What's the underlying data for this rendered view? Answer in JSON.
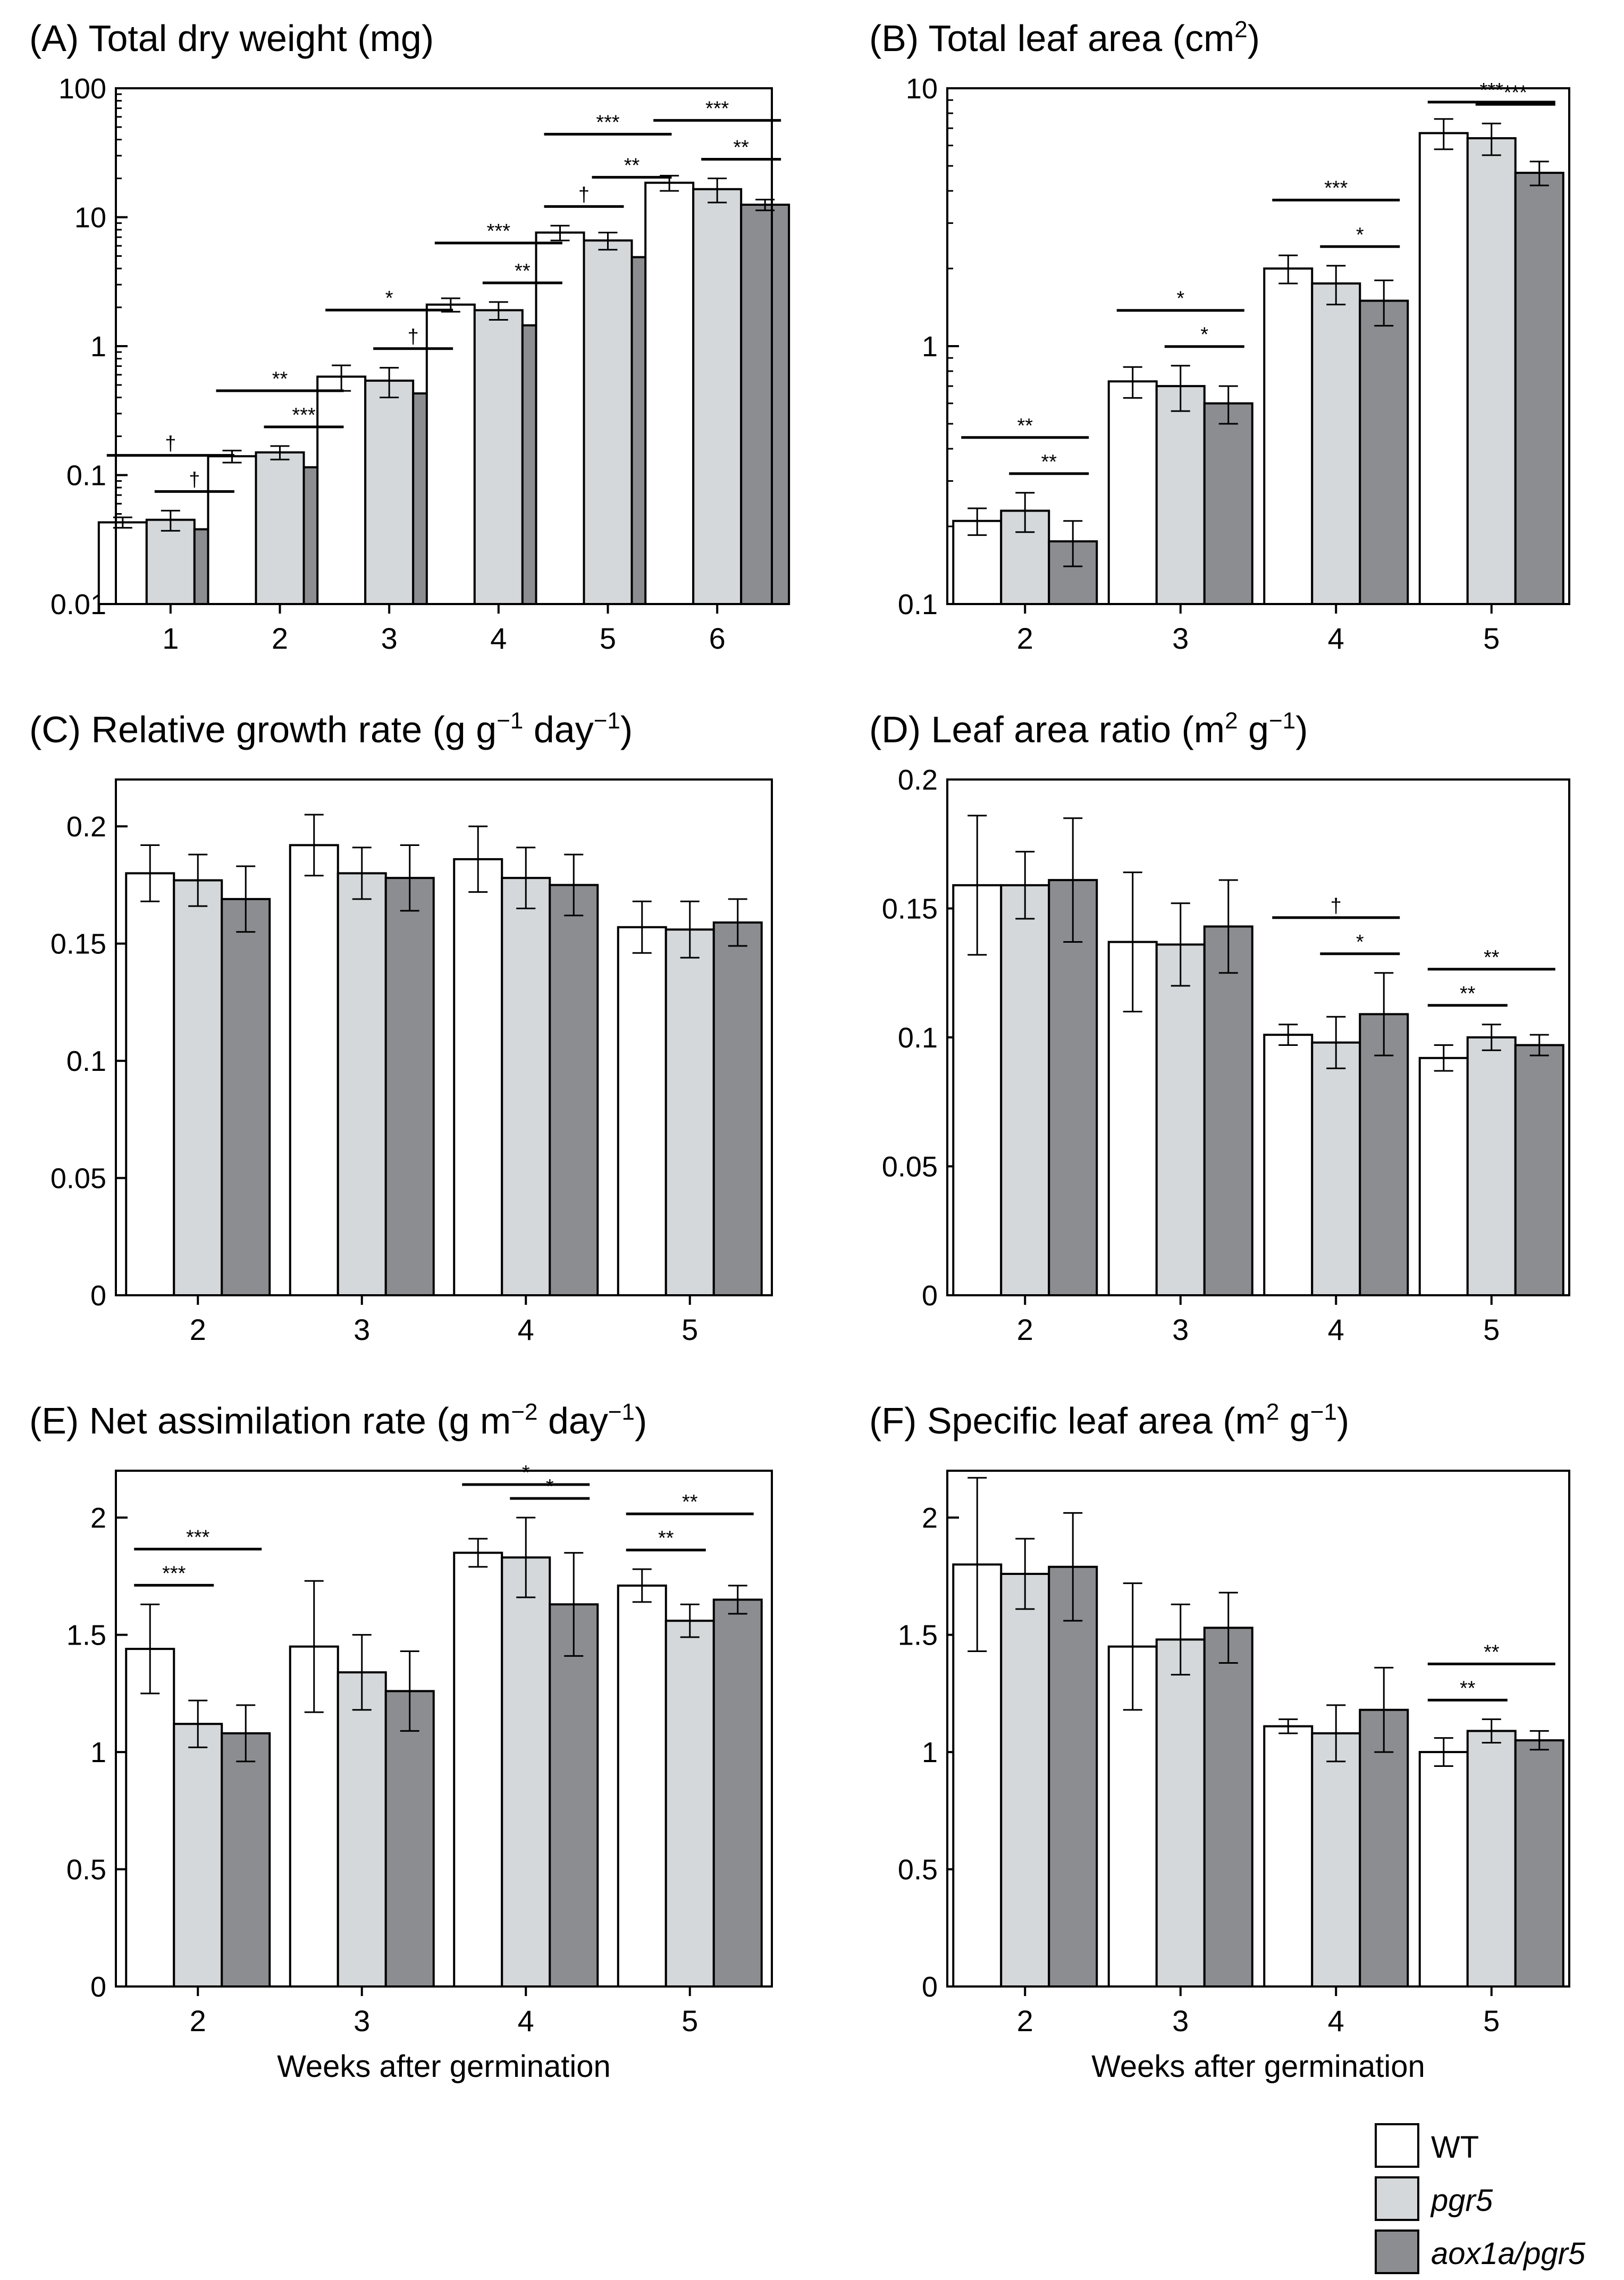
{
  "legend": [
    {
      "label": "WT",
      "color": "#ffffff",
      "italic": false
    },
    {
      "label": "pgr5",
      "color": "#d4d8da",
      "italic": true
    },
    {
      "label": "aox1a/pgr5",
      "color": "#8c8d91",
      "italic": true
    }
  ],
  "chart_data": [
    {
      "type": "bar",
      "id": "A",
      "title": {
        "lead": "(A) Total dry weight (mg)"
      },
      "scale": "log",
      "ylim": [
        0.01,
        100
      ],
      "yticks": [
        "0.01",
        "0.1",
        "1",
        "10",
        "100"
      ],
      "categories": [
        "1",
        "2",
        "3",
        "4",
        "5",
        "6"
      ],
      "xlabel": "",
      "series": [
        {
          "name": "WT",
          "values": [
            0.043,
            0.14,
            0.58,
            2.1,
            7.6,
            18.5
          ],
          "errors": [
            0.004,
            0.015,
            0.13,
            0.25,
            1.0,
            2.5
          ]
        },
        {
          "name": "pgr5",
          "values": [
            0.045,
            0.15,
            0.54,
            1.9,
            6.6,
            16.5
          ],
          "errors": [
            0.008,
            0.018,
            0.14,
            0.3,
            1.0,
            3.5
          ]
        },
        {
          "name": "aox1a/pgr5",
          "values": [
            0.038,
            0.115,
            0.43,
            1.45,
            4.9,
            12.5
          ],
          "errors": [
            0.006,
            0.025,
            0.09,
            0.25,
            0.6,
            1.2
          ]
        }
      ],
      "significance": [
        {
          "cat": 0,
          "from": 0,
          "to": 2,
          "label": "†"
        },
        {
          "cat": 0,
          "from": 1,
          "to": 2,
          "label": "†"
        },
        {
          "cat": 1,
          "from": 0,
          "to": 2,
          "label": "**"
        },
        {
          "cat": 1,
          "from": 1,
          "to": 2,
          "label": "***"
        },
        {
          "cat": 2,
          "from": 0,
          "to": 2,
          "label": "*"
        },
        {
          "cat": 2,
          "from": 1,
          "to": 2,
          "label": "†"
        },
        {
          "cat": 3,
          "from": 0,
          "to": 2,
          "label": "***"
        },
        {
          "cat": 3,
          "from": 1,
          "to": 2,
          "label": "**"
        },
        {
          "cat": 4,
          "from": 0,
          "to": 2,
          "label": "***"
        },
        {
          "cat": 4,
          "from": 0,
          "to": 1,
          "label": "†"
        },
        {
          "cat": 4,
          "from": 1,
          "to": 2,
          "label": "**"
        },
        {
          "cat": 5,
          "from": 0,
          "to": 2,
          "label": "***"
        },
        {
          "cat": 5,
          "from": 1,
          "to": 2,
          "label": "**"
        }
      ]
    },
    {
      "type": "bar",
      "id": "B",
      "title": {
        "lead": "(B) Total leaf area (cm",
        "sup1": "2",
        "mid": ")"
      },
      "scale": "log",
      "ylim": [
        0.1,
        10
      ],
      "yticks": [
        "0.1",
        "1",
        "10"
      ],
      "categories": [
        "2",
        "3",
        "4",
        "5"
      ],
      "xlabel": "",
      "series": [
        {
          "name": "WT",
          "values": [
            0.21,
            0.73,
            2.0,
            6.7
          ],
          "errors": [
            0.025,
            0.1,
            0.25,
            0.9
          ]
        },
        {
          "name": "pgr5",
          "values": [
            0.23,
            0.7,
            1.75,
            6.4
          ],
          "errors": [
            0.04,
            0.14,
            0.3,
            0.9
          ]
        },
        {
          "name": "aox1a/pgr5",
          "values": [
            0.175,
            0.6,
            1.5,
            4.7
          ],
          "errors": [
            0.035,
            0.1,
            0.3,
            0.5
          ]
        }
      ],
      "significance": [
        {
          "cat": 0,
          "from": 0,
          "to": 2,
          "label": "**"
        },
        {
          "cat": 0,
          "from": 1,
          "to": 2,
          "label": "**"
        },
        {
          "cat": 1,
          "from": 0,
          "to": 2,
          "label": "*"
        },
        {
          "cat": 1,
          "from": 1,
          "to": 2,
          "label": "*"
        },
        {
          "cat": 2,
          "from": 0,
          "to": 2,
          "label": "***"
        },
        {
          "cat": 2,
          "from": 1,
          "to": 2,
          "label": "*"
        },
        {
          "cat": 3,
          "from": 0,
          "to": 2,
          "label": "***"
        },
        {
          "cat": 3,
          "from": 1,
          "to": 2,
          "label": "***"
        }
      ]
    },
    {
      "type": "bar",
      "id": "C",
      "title": {
        "lead": "(C) Relative growth rate (g g",
        "sup1": "−1",
        "mid": " day",
        "sup2": "−1",
        "tail": ")"
      },
      "scale": "linear",
      "ylim": [
        0,
        0.22
      ],
      "yticks": [
        "0",
        "0.05",
        "0.1",
        "0.15",
        "0.2"
      ],
      "categories": [
        "2",
        "3",
        "4",
        "5"
      ],
      "xlabel": "",
      "series": [
        {
          "name": "WT",
          "values": [
            0.18,
            0.192,
            0.186,
            0.157
          ],
          "errors": [
            0.012,
            0.013,
            0.014,
            0.011
          ]
        },
        {
          "name": "pgr5",
          "values": [
            0.177,
            0.18,
            0.178,
            0.156
          ],
          "errors": [
            0.011,
            0.011,
            0.013,
            0.012
          ]
        },
        {
          "name": "aox1a/pgr5",
          "values": [
            0.169,
            0.178,
            0.175,
            0.159
          ],
          "errors": [
            0.014,
            0.014,
            0.013,
            0.01
          ]
        }
      ],
      "significance": []
    },
    {
      "type": "bar",
      "id": "D",
      "title": {
        "lead": "(D) Leaf area ratio (m",
        "sup1": "2",
        "mid": " g",
        "sup2": "−1",
        "tail": ")"
      },
      "scale": "linear",
      "ylim": [
        0,
        0.2
      ],
      "yticks": [
        "0",
        "0.05",
        "0.1",
        "0.15",
        "0.2"
      ],
      "categories": [
        "2",
        "3",
        "4",
        "5"
      ],
      "xlabel": "",
      "series": [
        {
          "name": "WT",
          "values": [
            0.159,
            0.137,
            0.101,
            0.092
          ],
          "errors": [
            0.027,
            0.027,
            0.004,
            0.005
          ]
        },
        {
          "name": "pgr5",
          "values": [
            0.159,
            0.136,
            0.098,
            0.1
          ],
          "errors": [
            0.013,
            0.016,
            0.01,
            0.005
          ]
        },
        {
          "name": "aox1a/pgr5",
          "values": [
            0.161,
            0.143,
            0.109,
            0.097
          ],
          "errors": [
            0.024,
            0.018,
            0.016,
            0.004
          ]
        }
      ],
      "significance": [
        {
          "cat": 2,
          "from": 0,
          "to": 2,
          "label": "†"
        },
        {
          "cat": 2,
          "from": 1,
          "to": 2,
          "label": "*"
        },
        {
          "cat": 3,
          "from": 0,
          "to": 2,
          "label": "**"
        },
        {
          "cat": 3,
          "from": 0,
          "to": 1,
          "label": "**"
        }
      ]
    },
    {
      "type": "bar",
      "id": "E",
      "title": {
        "lead": "(E) Net assimilation rate (g m",
        "sup1": "−2",
        "mid": " day",
        "sup2": "−1",
        "tail": ")"
      },
      "scale": "linear",
      "ylim": [
        0,
        2.2
      ],
      "yticks": [
        "0",
        "0.5",
        "1",
        "1.5",
        "2"
      ],
      "categories": [
        "2",
        "3",
        "4",
        "5"
      ],
      "xlabel": "Weeks after germination",
      "series": [
        {
          "name": "WT",
          "values": [
            1.44,
            1.45,
            1.85,
            1.71
          ],
          "errors": [
            0.19,
            0.28,
            0.06,
            0.07
          ]
        },
        {
          "name": "pgr5",
          "values": [
            1.12,
            1.34,
            1.83,
            1.56
          ],
          "errors": [
            0.1,
            0.16,
            0.17,
            0.07
          ]
        },
        {
          "name": "aox1a/pgr5",
          "values": [
            1.08,
            1.26,
            1.63,
            1.65
          ],
          "errors": [
            0.12,
            0.17,
            0.22,
            0.06
          ]
        }
      ],
      "significance": [
        {
          "cat": 0,
          "from": 0,
          "to": 2,
          "label": "***"
        },
        {
          "cat": 0,
          "from": 0,
          "to": 1,
          "label": "***"
        },
        {
          "cat": 2,
          "from": 0,
          "to": 2,
          "label": "*"
        },
        {
          "cat": 2,
          "from": 1,
          "to": 2,
          "label": "*"
        },
        {
          "cat": 3,
          "from": 0,
          "to": 2,
          "label": "**"
        },
        {
          "cat": 3,
          "from": 0,
          "to": 1,
          "label": "**"
        }
      ]
    },
    {
      "type": "bar",
      "id": "F",
      "title": {
        "lead": "(F) Specific leaf area (m",
        "sup1": "2",
        "mid": " g",
        "sup2": "−1",
        "tail": ")"
      },
      "scale": "linear",
      "ylim": [
        0,
        2.2
      ],
      "yticks": [
        "0",
        "0.5",
        "1",
        "1.5",
        "2"
      ],
      "categories": [
        "2",
        "3",
        "4",
        "5"
      ],
      "xlabel": "Weeks after germination",
      "series": [
        {
          "name": "WT",
          "values": [
            1.8,
            1.45,
            1.11,
            1.0
          ],
          "errors": [
            0.37,
            0.27,
            0.03,
            0.06
          ]
        },
        {
          "name": "pgr5",
          "values": [
            1.76,
            1.48,
            1.08,
            1.09
          ],
          "errors": [
            0.15,
            0.15,
            0.12,
            0.05
          ]
        },
        {
          "name": "aox1a/pgr5",
          "values": [
            1.79,
            1.53,
            1.18,
            1.05
          ],
          "errors": [
            0.23,
            0.15,
            0.18,
            0.04
          ]
        }
      ],
      "significance": [
        {
          "cat": 3,
          "from": 0,
          "to": 2,
          "label": "**"
        },
        {
          "cat": 3,
          "from": 0,
          "to": 1,
          "label": "**"
        }
      ]
    }
  ]
}
